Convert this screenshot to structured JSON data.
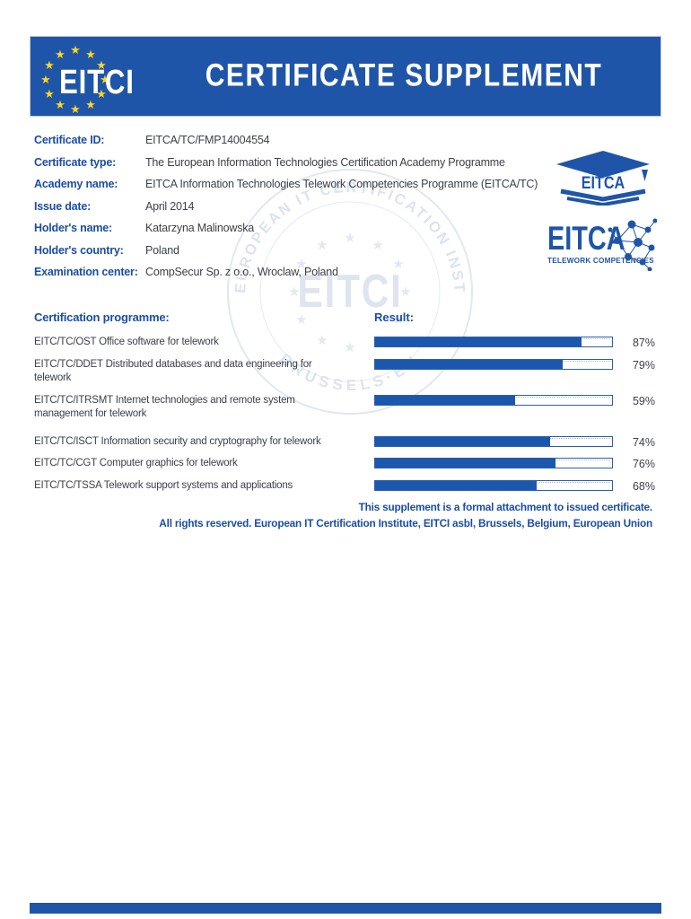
{
  "colors": {
    "brand_blue": "#1F55A8",
    "label_blue": "#1B4EA3",
    "text_dark": "#3C414B",
    "bar_fill": "#1B57AD",
    "star_yellow": "#FFD521",
    "watermark_gray_blue": "#dfe4ee"
  },
  "header": {
    "title": "CERTIFICATE SUPPLEMENT",
    "logo_text": "EITCI"
  },
  "details": {
    "rows": [
      {
        "label": "Certificate ID:",
        "value": "EITCA/TC/FMP14004554"
      },
      {
        "label": "Certificate type:",
        "value": "The European Information Technologies Certification Academy Programme"
      },
      {
        "label": "Academy name:",
        "value": "EITCA Information Technologies Telework Competencies Programme (EITCA/TC)"
      },
      {
        "label": "Issue date:",
        "value": "April 2014"
      },
      {
        "label": "Holder's name:",
        "value": "Katarzyna Malinowska"
      },
      {
        "label": "Holder's country:",
        "value": "Poland"
      },
      {
        "label": "Examination center:",
        "value": "CompSecur Sp. z o.o., Wroclaw, Poland"
      }
    ]
  },
  "side_logos": {
    "academy_cap_text": "EITCA",
    "telework_text": "EITCA",
    "telework_subtitle": "TELEWORK COMPETENCIES"
  },
  "watermark": {
    "top_text": "EUROPEAN IT CERTIFICATION INSTITUTE·ASBL",
    "bottom_text": "BRUSSELS·EU",
    "center_text": "EITCI"
  },
  "programme": {
    "heading": "Certification programme:",
    "result_heading": "Result:",
    "rows": [
      {
        "label": "EITC/TC/OST Office software for telework",
        "percent": 87
      },
      {
        "label": "EITC/TC/DDET Distributed databases and data engineering for telework",
        "percent": 79
      },
      {
        "label": "EITC/TC/ITRSMT Internet technologies and remote system management for telework",
        "percent": 59
      },
      {
        "label": "EITC/TC/ISCT Information security and cryptography for telework",
        "percent": 74
      },
      {
        "label": "EITC/TC/CGT Computer graphics for telework",
        "percent": 76
      },
      {
        "label": "EITC/TC/TSSA Telework support systems and applications",
        "percent": 68
      }
    ]
  },
  "footer": {
    "line1": "This supplement is a formal attachment to issued certificate.",
    "line2": "All rights reserved. European IT Certification Institute, EITCI asbl, Brussels, Belgium, European Union"
  }
}
